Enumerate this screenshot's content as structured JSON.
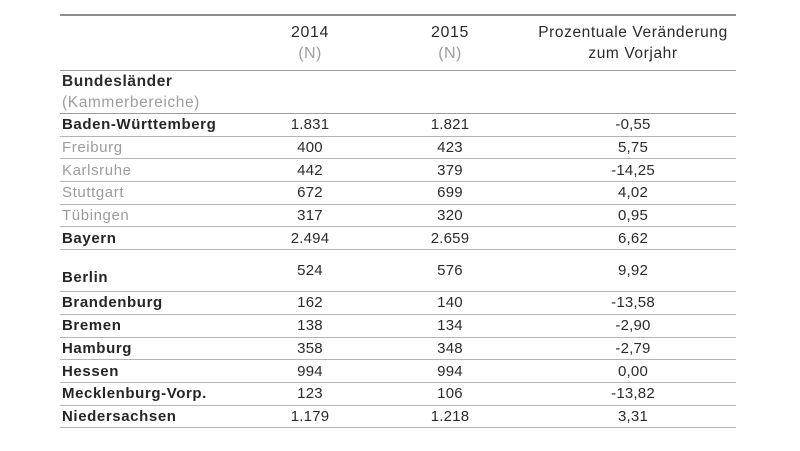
{
  "table": {
    "header": {
      "y2014": "2014",
      "y2014_unit": "(N)",
      "y2015": "2015",
      "y2015_unit": "(N)",
      "change_line1": "Prozentuale Veränderung",
      "change_line2": "zum Vorjahr"
    },
    "group_header": {
      "title": "Bundesländer",
      "subtitle": "(Kammerbereiche)"
    },
    "rows": [
      {
        "label": "Baden-Württemberg",
        "type": "bundesland",
        "tall": false,
        "v2014": "1.831",
        "v2015": "1.821",
        "change": "-0,55"
      },
      {
        "label": "Freiburg",
        "type": "kammerbereich",
        "tall": false,
        "v2014": "400",
        "v2015": "423",
        "change": "5,75"
      },
      {
        "label": "Karlsruhe",
        "type": "kammerbereich",
        "tall": false,
        "v2014": "442",
        "v2015": "379",
        "change": "-14,25"
      },
      {
        "label": "Stuttgart",
        "type": "kammerbereich",
        "tall": false,
        "v2014": "672",
        "v2015": "699",
        "change": "4,02"
      },
      {
        "label": "Tübingen",
        "type": "kammerbereich",
        "tall": false,
        "v2014": "317",
        "v2015": "320",
        "change": "0,95"
      },
      {
        "label": "Bayern",
        "type": "bundesland",
        "tall": false,
        "v2014": "2.494",
        "v2015": "2.659",
        "change": "6,62"
      },
      {
        "label": "Berlin",
        "type": "bundesland",
        "tall": true,
        "v2014": "524",
        "v2015": "576",
        "change": "9,92"
      },
      {
        "label": "Brandenburg",
        "type": "bundesland",
        "tall": false,
        "v2014": "162",
        "v2015": "140",
        "change": "-13,58"
      },
      {
        "label": "Bremen",
        "type": "bundesland",
        "tall": false,
        "v2014": "138",
        "v2015": "134",
        "change": "-2,90"
      },
      {
        "label": "Hamburg",
        "type": "bundesland",
        "tall": false,
        "v2014": "358",
        "v2015": "348",
        "change": "-2,79"
      },
      {
        "label": "Hessen",
        "type": "bundesland",
        "tall": false,
        "v2014": "994",
        "v2015": "994",
        "change": "0,00"
      },
      {
        "label": "Mecklenburg-Vorp.",
        "type": "bundesland",
        "tall": false,
        "v2014": "123",
        "v2015": "106",
        "change": "-13,82"
      },
      {
        "label": "Niedersachsen",
        "type": "bundesland",
        "tall": false,
        "v2014": "1.179",
        "v2015": "1.218",
        "change": "3,31"
      }
    ]
  },
  "colors": {
    "text_dark": "#2b2b2b",
    "text_gray": "#9d9d9d",
    "line_light": "#b5b5b5",
    "line_strong": "#8d8d8d",
    "background": "#ffffff"
  }
}
